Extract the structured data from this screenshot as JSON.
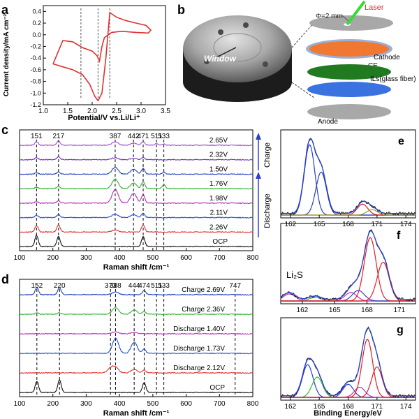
{
  "colors": {
    "cv": "#e03030",
    "laser": "#33dd33",
    "laser_label": "#e03030",
    "cathode": "#f07830",
    "ce": "#9ab0d8",
    "ils": "#207a20",
    "glass": "#3a72e0",
    "anode": "#a8a8a8",
    "fit_blue": "#2a3fcf",
    "fit_red": "#e02020",
    "fit_green": "#30c030",
    "fit_purple": "#c030c0",
    "fit_olive": "#a0a020",
    "exp": "#111111"
  },
  "panel_b": {
    "label": "b",
    "window_label": "Window",
    "phi_label": "Φ=2 mm",
    "layers": [
      {
        "key": "laser",
        "label": "Laser"
      },
      {
        "key": "cathode",
        "label": "Cathode"
      },
      {
        "key": "ce",
        "label": "CE"
      },
      {
        "key": "ils",
        "label": "ILs(glass fiber)"
      },
      {
        "key": "anode",
        "label": "Anode"
      }
    ]
  },
  "chart_data": [
    {
      "id": "a",
      "panel_label": "a",
      "type": "line",
      "xlabel": "Potential/V vs.Li/Li⁺",
      "ylabel": "Current density/mA cm⁻²",
      "xlim": [
        1.0,
        3.5
      ],
      "ylim": [
        -1.2,
        0.5
      ],
      "xticks": [
        1.0,
        1.5,
        2.0,
        2.5,
        3.0,
        3.5
      ],
      "yticks": [
        -1.2,
        -1.0,
        -0.8,
        -0.6,
        -0.4,
        -0.2,
        0.0,
        0.2,
        0.4
      ],
      "dashed_markers_x": [
        1.77,
        2.12,
        2.36
      ],
      "series": [
        {
          "name": "CV",
          "x": [
            1.2,
            1.4,
            1.6,
            1.8,
            1.95,
            2.05,
            2.12,
            2.2,
            2.28,
            2.36,
            2.5,
            2.7,
            2.9,
            3.1,
            3.2,
            3.15,
            2.9,
            2.6,
            2.4,
            2.25,
            2.2,
            2.15,
            2.1,
            2.0,
            1.8,
            1.6,
            1.4,
            1.25,
            1.2
          ],
          "y": [
            -0.5,
            -0.55,
            -0.6,
            -0.68,
            -0.85,
            -1.05,
            -1.13,
            -1.0,
            -0.4,
            0.38,
            0.3,
            0.24,
            0.2,
            0.16,
            0.08,
            0.03,
            0.04,
            0.06,
            0.04,
            -0.05,
            -0.2,
            -0.45,
            -0.36,
            -0.28,
            -0.22,
            -0.12,
            -0.1,
            -0.4,
            -0.5
          ]
        }
      ]
    },
    {
      "id": "c",
      "panel_label": "c",
      "type": "line",
      "xlabel": "Raman shift /cm⁻¹",
      "xlim": [
        100,
        800
      ],
      "xticks": [
        100,
        200,
        300,
        400,
        500,
        600,
        700,
        800
      ],
      "peak_labels": [
        "151",
        "217",
        "387",
        "442",
        "471",
        "511",
        "533"
      ],
      "peak_positions": [
        151,
        217,
        387,
        442,
        471,
        511,
        533
      ],
      "side_labels": {
        "charge": "Charge",
        "discharge": "Discharge"
      },
      "series": [
        {
          "name": "2.65V",
          "color": "#a050d0",
          "peaks": [
            [
              151,
              5
            ],
            [
              217,
              6
            ],
            [
              387,
              5
            ],
            [
              442,
              3
            ],
            [
              471,
              5
            ],
            [
              511,
              2
            ],
            [
              533,
              2
            ]
          ]
        },
        {
          "name": "2.32V",
          "color": "#7030b0",
          "peaks": [
            [
              151,
              3
            ],
            [
              217,
              4
            ],
            [
              387,
              3
            ],
            [
              442,
              2
            ],
            [
              471,
              3
            ]
          ]
        },
        {
          "name": "1.50V",
          "color": "#2040c0",
          "peaks": [
            [
              151,
              2
            ],
            [
              217,
              3
            ],
            [
              387,
              10
            ],
            [
              442,
              7
            ],
            [
              471,
              8
            ],
            [
              533,
              3
            ]
          ]
        },
        {
          "name": "1.76V",
          "color": "#30b030",
          "peaks": [
            [
              151,
              2
            ],
            [
              217,
              3
            ],
            [
              387,
              14
            ],
            [
              442,
              8
            ],
            [
              471,
              10
            ],
            [
              533,
              6
            ]
          ]
        },
        {
          "name": "1.98V",
          "color": "#b030b0",
          "peaks": [
            [
              151,
              2
            ],
            [
              217,
              3
            ],
            [
              387,
              20
            ],
            [
              442,
              14
            ],
            [
              471,
              12
            ]
          ]
        },
        {
          "name": "2.11V",
          "color": "#2050d0",
          "peaks": [
            [
              151,
              3
            ],
            [
              217,
              4
            ],
            [
              387,
              5
            ],
            [
              442,
              4
            ],
            [
              471,
              6
            ]
          ]
        },
        {
          "name": "2.26V",
          "color": "#e03030",
          "peaks": [
            [
              151,
              9
            ],
            [
              217,
              10
            ],
            [
              387,
              3
            ],
            [
              471,
              10
            ]
          ]
        },
        {
          "name": "OCP",
          "color": "#111111",
          "peaks": [
            [
              151,
              16
            ],
            [
              217,
              14
            ],
            [
              471,
              14
            ]
          ]
        }
      ]
    },
    {
      "id": "d",
      "panel_label": "d",
      "type": "line",
      "xlabel": "Raman shift /cm⁻¹",
      "xlim": [
        100,
        800
      ],
      "xticks": [
        100,
        200,
        300,
        400,
        500,
        600,
        700,
        800
      ],
      "peak_labels": [
        "152",
        "220",
        "373",
        "388",
        "444",
        "474",
        "511",
        "533",
        "747"
      ],
      "peak_positions": [
        152,
        220,
        373,
        388,
        444,
        474,
        511,
        533,
        747
      ],
      "series": [
        {
          "name": "Charge 2.69V",
          "color": "#2040c0",
          "peaks": [
            [
              152,
              10
            ],
            [
              220,
              10
            ],
            [
              388,
              4
            ],
            [
              474,
              6
            ]
          ]
        },
        {
          "name": "Charge 2.36V",
          "color": "#30b030",
          "peaks": [
            [
              152,
              2
            ],
            [
              220,
              2
            ],
            [
              388,
              10
            ],
            [
              444,
              6
            ],
            [
              474,
              4
            ]
          ]
        },
        {
          "name": "Discharge 1.40V",
          "color": "#c030c0",
          "peaks": [
            [
              388,
              3
            ],
            [
              444,
              2
            ]
          ]
        },
        {
          "name": "Discharge 1.73V",
          "color": "#2050d0",
          "peaks": [
            [
              388,
              22
            ],
            [
              444,
              16
            ],
            [
              474,
              6
            ]
          ]
        },
        {
          "name": "Discharge 2.12V",
          "color": "#e03030",
          "peaks": [
            [
              373,
              6
            ],
            [
              388,
              8
            ],
            [
              444,
              5
            ],
            [
              474,
              4
            ]
          ]
        },
        {
          "name": "OCP",
          "color": "#111111",
          "peaks": [
            [
              152,
              16
            ],
            [
              220,
              18
            ],
            [
              474,
              14
            ]
          ]
        }
      ]
    },
    {
      "id": "e",
      "panel_label": "e",
      "type": "line",
      "xlim": [
        161,
        175
      ],
      "xticks": [
        162,
        165,
        168,
        171,
        174
      ],
      "components": [
        {
          "name": "comp1",
          "color": "#2a3fcf",
          "center": 164.0,
          "height": 0.9
        },
        {
          "name": "comp2",
          "color": "#2a3fcf",
          "center": 165.2,
          "height": 0.55
        },
        {
          "name": "comp3",
          "color": "#e02020",
          "center": 169.5,
          "height": 0.14
        },
        {
          "name": "comp4",
          "color": "#a0a020",
          "center": 170.5,
          "height": 0.07
        }
      ]
    },
    {
      "id": "f",
      "panel_label": "f",
      "type": "line",
      "xlim": [
        160,
        172.5
      ],
      "xticks": [
        162,
        165,
        168,
        171
      ],
      "annotation": "Li₂S",
      "components": [
        {
          "name": "Li2S",
          "color": "#c030c0",
          "center": 160.8,
          "height": 0.1
        },
        {
          "name": "comp2",
          "color": "#30c030",
          "center": 163.2,
          "height": 0.05
        },
        {
          "name": "comp3",
          "color": "#c030c0",
          "center": 166.5,
          "height": 0.12
        },
        {
          "name": "comp4",
          "color": "#2a3fcf",
          "center": 167.2,
          "height": 0.15
        },
        {
          "name": "comp5",
          "color": "#e02020",
          "center": 168.3,
          "height": 0.9
        },
        {
          "name": "comp6",
          "color": "#e02020",
          "center": 169.5,
          "height": 0.55
        }
      ]
    },
    {
      "id": "g",
      "panel_label": "g",
      "type": "line",
      "xlim": [
        161,
        175
      ],
      "xticks": [
        162,
        165,
        168,
        171,
        174
      ],
      "xlabel": "Binding Energy/eV",
      "components": [
        {
          "name": "comp1",
          "color": "#2a3fcf",
          "center": 163.8,
          "height": 0.45
        },
        {
          "name": "comp2",
          "color": "#30c030",
          "center": 164.8,
          "height": 0.28
        },
        {
          "name": "comp3",
          "color": "#2a3fcf",
          "center": 168.0,
          "height": 0.18
        },
        {
          "name": "comp4",
          "color": "#c030c0",
          "center": 169.2,
          "height": 0.14
        },
        {
          "name": "comp5",
          "color": "#e02020",
          "center": 170.0,
          "height": 0.8
        },
        {
          "name": "comp6",
          "color": "#e02020",
          "center": 171.0,
          "height": 0.42
        }
      ]
    }
  ]
}
